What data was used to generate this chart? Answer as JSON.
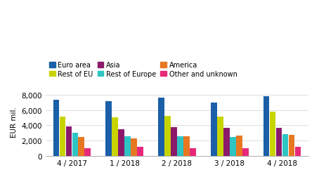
{
  "groups": [
    "4 / 2017",
    "1 / 2018",
    "2 / 2018",
    "3 / 2018",
    "4 / 2018"
  ],
  "series_order": [
    "Euro area",
    "Rest of EU",
    "Asia",
    "Rest of Europe",
    "America",
    "Other and unknown"
  ],
  "series": {
    "Euro area": [
      7300,
      7200,
      7650,
      7000,
      7800
    ],
    "Rest of EU": [
      5150,
      5050,
      5200,
      5150,
      5750
    ],
    "Asia": [
      3850,
      3500,
      3750,
      3700,
      3650
    ],
    "Rest of Europe": [
      3050,
      2600,
      2550,
      2500,
      2850
    ],
    "America": [
      2500,
      2300,
      2600,
      2650,
      2750
    ],
    "Other and unknown": [
      1050,
      1200,
      1050,
      1000,
      1200
    ]
  },
  "colors": {
    "Euro area": "#1a5fa8",
    "Rest of EU": "#c8d400",
    "Asia": "#8b1a6b",
    "Rest of Europe": "#2ec4c4",
    "America": "#e87722",
    "Other and unknown": "#e8297a"
  },
  "legend_row1": [
    "Euro area",
    "Rest of EU",
    "Asia"
  ],
  "legend_row2": [
    "Rest of Europe",
    "America",
    "Other and unknown"
  ],
  "ylim": [
    0,
    9000
  ],
  "yticks": [
    0,
    2000,
    4000,
    6000,
    8000
  ],
  "ylabel": "EUR mil.",
  "background_color": "#ffffff",
  "grid_color": "#d8d8d8"
}
